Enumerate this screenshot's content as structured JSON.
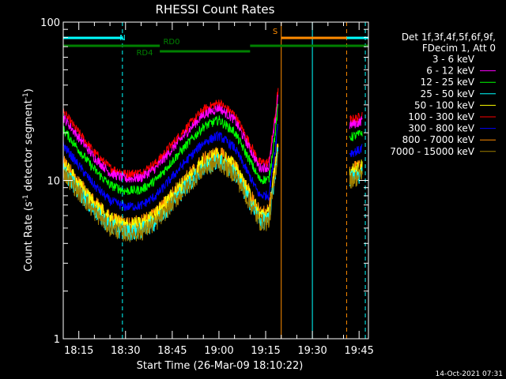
{
  "chart_data": {
    "type": "line",
    "title": "RHESSI Count Rates",
    "xlabel": "Start Time (26-Mar-09 18:10:22)",
    "ylabel_main": "Count Rate (s",
    "ylabel_sup1": "-1",
    "ylabel_mid": " detector segment",
    "ylabel_sup2": "-1",
    "ylabel_end": ")",
    "y_scale": "log",
    "xlim": [
      "18:10",
      "19:48"
    ],
    "ylim": [
      1,
      100
    ],
    "x_ticks": [
      "18:15",
      "18:30",
      "18:45",
      "19:00",
      "19:15",
      "19:30",
      "19:45"
    ],
    "y_ticks": [
      {
        "value": 1,
        "label": "1"
      },
      {
        "value": 10,
        "label": "10"
      },
      {
        "value": 100,
        "label": "100"
      }
    ],
    "legend_header": [
      "Det 1f,3f,4f,5f,6f,9f,",
      "FDecim 1, Att 0"
    ],
    "legend_position": "right",
    "series": [
      {
        "name": "3 - 6 keV",
        "color": "#000000",
        "scale": 1.0
      },
      {
        "name": "6 - 12 keV",
        "color": "#ff00ff",
        "scale": 0.93
      },
      {
        "name": "12 - 25 keV",
        "color": "#00ff00",
        "scale": 0.78
      },
      {
        "name": "25 - 50 keV",
        "color": "#00ffff",
        "scale": 0.43
      },
      {
        "name": "50 - 100 keV",
        "color": "#ffff00",
        "scale": 0.47
      },
      {
        "name": "100 - 300 keV",
        "color": "#ff0000",
        "scale": 1.0
      },
      {
        "name": "300 - 800 keV",
        "color": "#0000ff",
        "scale": 0.62
      },
      {
        "name": "800 - 7000 keV",
        "color": "#ff8c00",
        "scale": 0.48
      },
      {
        "name": "7000 - 15000 keV",
        "color": "#a08000",
        "scale": 0.42
      }
    ],
    "base_curve": [
      {
        "t": "18:10",
        "y": 27
      },
      {
        "t": "18:15",
        "y": 20
      },
      {
        "t": "18:20",
        "y": 15
      },
      {
        "t": "18:25",
        "y": 12
      },
      {
        "t": "18:30",
        "y": 11
      },
      {
        "t": "18:35",
        "y": 11.2
      },
      {
        "t": "18:40",
        "y": 13
      },
      {
        "t": "18:45",
        "y": 17
      },
      {
        "t": "18:50",
        "y": 22
      },
      {
        "t": "18:55",
        "y": 28
      },
      {
        "t": "19:00",
        "y": 31
      },
      {
        "t": "19:05",
        "y": 26
      },
      {
        "t": "19:10",
        "y": 17
      },
      {
        "t": "19:13",
        "y": 13
      },
      {
        "t": "19:16",
        "y": 13
      },
      {
        "t": "19:18",
        "y": 25
      },
      {
        "t": "19:19",
        "y": 38
      }
    ],
    "base_curve_late": [
      {
        "t": "19:42",
        "y": 24
      },
      {
        "t": "19:45",
        "y": 25
      },
      {
        "t": "19:46",
        "y": 26
      }
    ],
    "noise_pct": 7,
    "state_bars": [
      {
        "label": "N",
        "color": "#00ffff",
        "level": "top",
        "segments": [
          [
            "18:10",
            "18:29"
          ],
          [
            "19:30",
            "19:48"
          ]
        ]
      },
      {
        "label": "S",
        "color": "#ff8c00",
        "level": "top",
        "segments": [
          [
            "19:20",
            "19:41"
          ]
        ]
      },
      {
        "label": "RD0",
        "color": "#008000",
        "level": "mid",
        "segments": [
          [
            "18:10",
            "18:41"
          ],
          [
            "19:10",
            "19:48"
          ]
        ]
      },
      {
        "label": "RD4",
        "color": "#008000",
        "level": "low",
        "segments": [
          [
            "18:41",
            "19:10"
          ]
        ]
      }
    ],
    "vertical_markers": [
      {
        "t": "18:10",
        "color": "#00ffff",
        "dashed": true
      },
      {
        "t": "18:29",
        "color": "#00ffff",
        "dashed": true
      },
      {
        "t": "19:20",
        "color": "#ff8c00",
        "dashed": false
      },
      {
        "t": "19:30",
        "color": "#00ffff",
        "dashed": false
      },
      {
        "t": "19:41",
        "color": "#ff8c00",
        "dashed": true
      },
      {
        "t": "19:47",
        "color": "#00ffff",
        "dashed": true
      }
    ],
    "footer_timestamp": "14-Oct-2021 07:31"
  }
}
